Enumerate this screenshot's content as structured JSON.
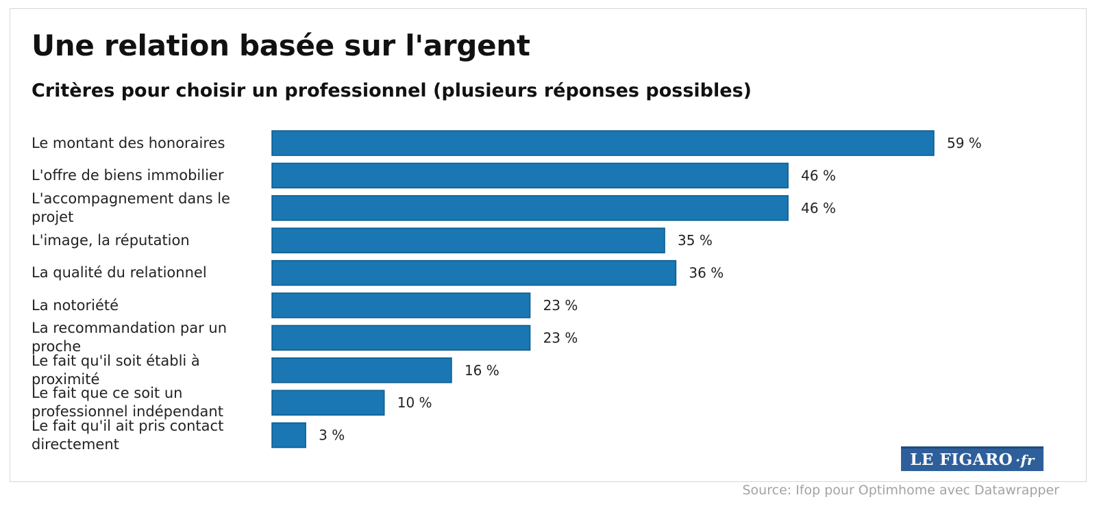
{
  "chart_data": {
    "type": "bar",
    "orientation": "horizontal",
    "title": "Une relation basée sur l'argent",
    "subtitle": "Critères pour choisir un professionnel (plusieurs réponses possibles)",
    "categories": [
      "Le montant des honoraires",
      "L'offre de biens immobilier",
      "L'accompagnement dans le projet",
      "L'image, la réputation",
      "La qualité du relationnel",
      "La notoriété",
      "La recommandation par un proche",
      "Le fait qu'il soit établi à proximité",
      "Le fait que ce soit un professionnel indépendant",
      "Le fait qu'il ait pris contact directement"
    ],
    "values": [
      59,
      46,
      46,
      35,
      36,
      23,
      23,
      16,
      10,
      3
    ],
    "value_suffix": " %",
    "xlim": [
      0,
      59
    ],
    "bar_color": "#1a77b3",
    "bar_border_color": "#0b5a8c",
    "grid": false,
    "legend": "none"
  },
  "logo": {
    "main": "LE FIGARO",
    "suffix": "·fr"
  },
  "source": "Source: Ifop pour Optimhome avec Datawrapper"
}
